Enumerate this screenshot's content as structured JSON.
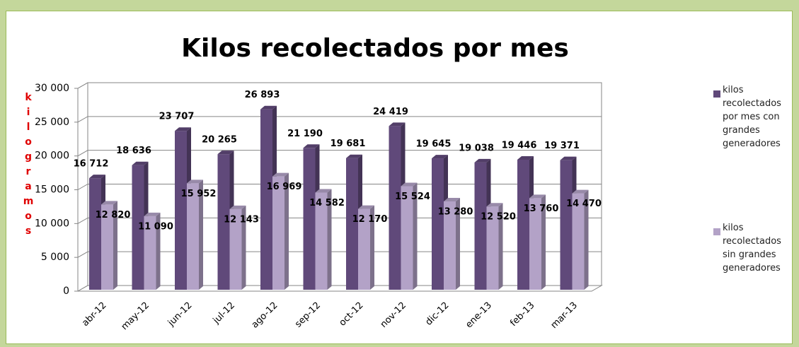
{
  "chart_data": {
    "type": "bar3d",
    "title": "Kilos recolectados por mes",
    "y_axis_label": "kilogramos",
    "categories": [
      "abr-12",
      "may-12",
      "jun-12",
      "jul-12",
      "ago-12",
      "sep-12",
      "oct-12",
      "nov-12",
      "dic-12",
      "ene-13",
      "feb-13",
      "mar-13"
    ],
    "series": [
      {
        "name": "kilos recolectados por mes con grandes generadores",
        "color": "#60497a",
        "values": [
          16712,
          18636,
          23707,
          20265,
          26893,
          21190,
          19681,
          24419,
          19645,
          19038,
          19446,
          19371
        ],
        "value_labels": [
          "16 712",
          "18 636",
          "23 707",
          "20 265",
          "26 893",
          "21 190",
          "19 681",
          "24 419",
          "19 645",
          "19 038",
          "19 446",
          "19 371"
        ]
      },
      {
        "name": "kilos recolectados sin grandes generadores",
        "color": "#b3a2c7",
        "values": [
          12820,
          11090,
          15952,
          12143,
          16969,
          14582,
          12170,
          15524,
          13280,
          12520,
          13760,
          14470
        ],
        "value_labels": [
          "12 820",
          "11 090",
          "15 952",
          "12 143",
          "16 969",
          "14 582",
          "12 170",
          "15 524",
          "13 280",
          "12 520",
          "13 760",
          "14 470"
        ]
      }
    ],
    "ylim": [
      0,
      30000
    ],
    "yticks": [
      0,
      {
        "value": 5000,
        "label": "5 000"
      },
      {
        "value": 10000,
        "label": "10 000"
      },
      {
        "value": 15000,
        "label": "15 000"
      },
      {
        "value": 20000,
        "label": "20 000"
      },
      {
        "value": 25000,
        "label": "25 000"
      },
      {
        "value": 30000,
        "label": "30 000"
      }
    ],
    "grid": true,
    "legend": "right"
  }
}
